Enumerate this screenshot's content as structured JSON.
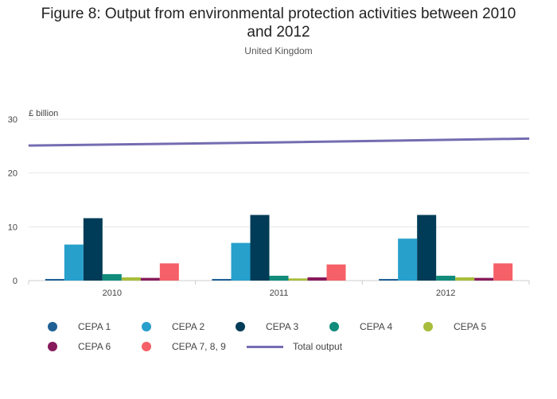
{
  "header": {
    "title_line1": "Figure 8: Output from environmental protection activities between 2010",
    "title_line2": "and 2012",
    "subtitle": "United Kingdom"
  },
  "chart_data": {
    "type": "bar",
    "title": "Figure 8: Output from environmental protection activities between 2010 and 2012",
    "subtitle": "United Kingdom",
    "ylabel": "£ billion",
    "xlabel": "",
    "ylim": [
      0,
      30
    ],
    "yticks": [
      0,
      10,
      20,
      30
    ],
    "grid": true,
    "legend_position": "bottom",
    "categories": [
      "2010",
      "2011",
      "2012"
    ],
    "series": [
      {
        "name": "CEPA 1",
        "type": "bar",
        "color": "#206095",
        "values": [
          0.3,
          0.3,
          0.3
        ]
      },
      {
        "name": "CEPA 2",
        "type": "bar",
        "color": "#27a0cc",
        "values": [
          6.7,
          7.0,
          7.8
        ]
      },
      {
        "name": "CEPA 3",
        "type": "bar",
        "color": "#003c57",
        "values": [
          11.6,
          12.2,
          12.2
        ]
      },
      {
        "name": "CEPA 4",
        "type": "bar",
        "color": "#118c7b",
        "values": [
          1.2,
          0.9,
          0.9
        ]
      },
      {
        "name": "CEPA 5",
        "type": "bar",
        "color": "#a8bd3a",
        "values": [
          0.6,
          0.4,
          0.6
        ]
      },
      {
        "name": "CEPA 6",
        "type": "bar",
        "color": "#871a5b",
        "values": [
          0.5,
          0.6,
          0.5
        ]
      },
      {
        "name": "CEPA 7, 8, 9",
        "type": "bar",
        "color": "#f66068",
        "values": [
          3.2,
          3.0,
          3.2
        ]
      },
      {
        "name": "Total output",
        "type": "line",
        "color": "#746cb1",
        "values": [
          25.1,
          25.7,
          26.4
        ]
      }
    ]
  }
}
